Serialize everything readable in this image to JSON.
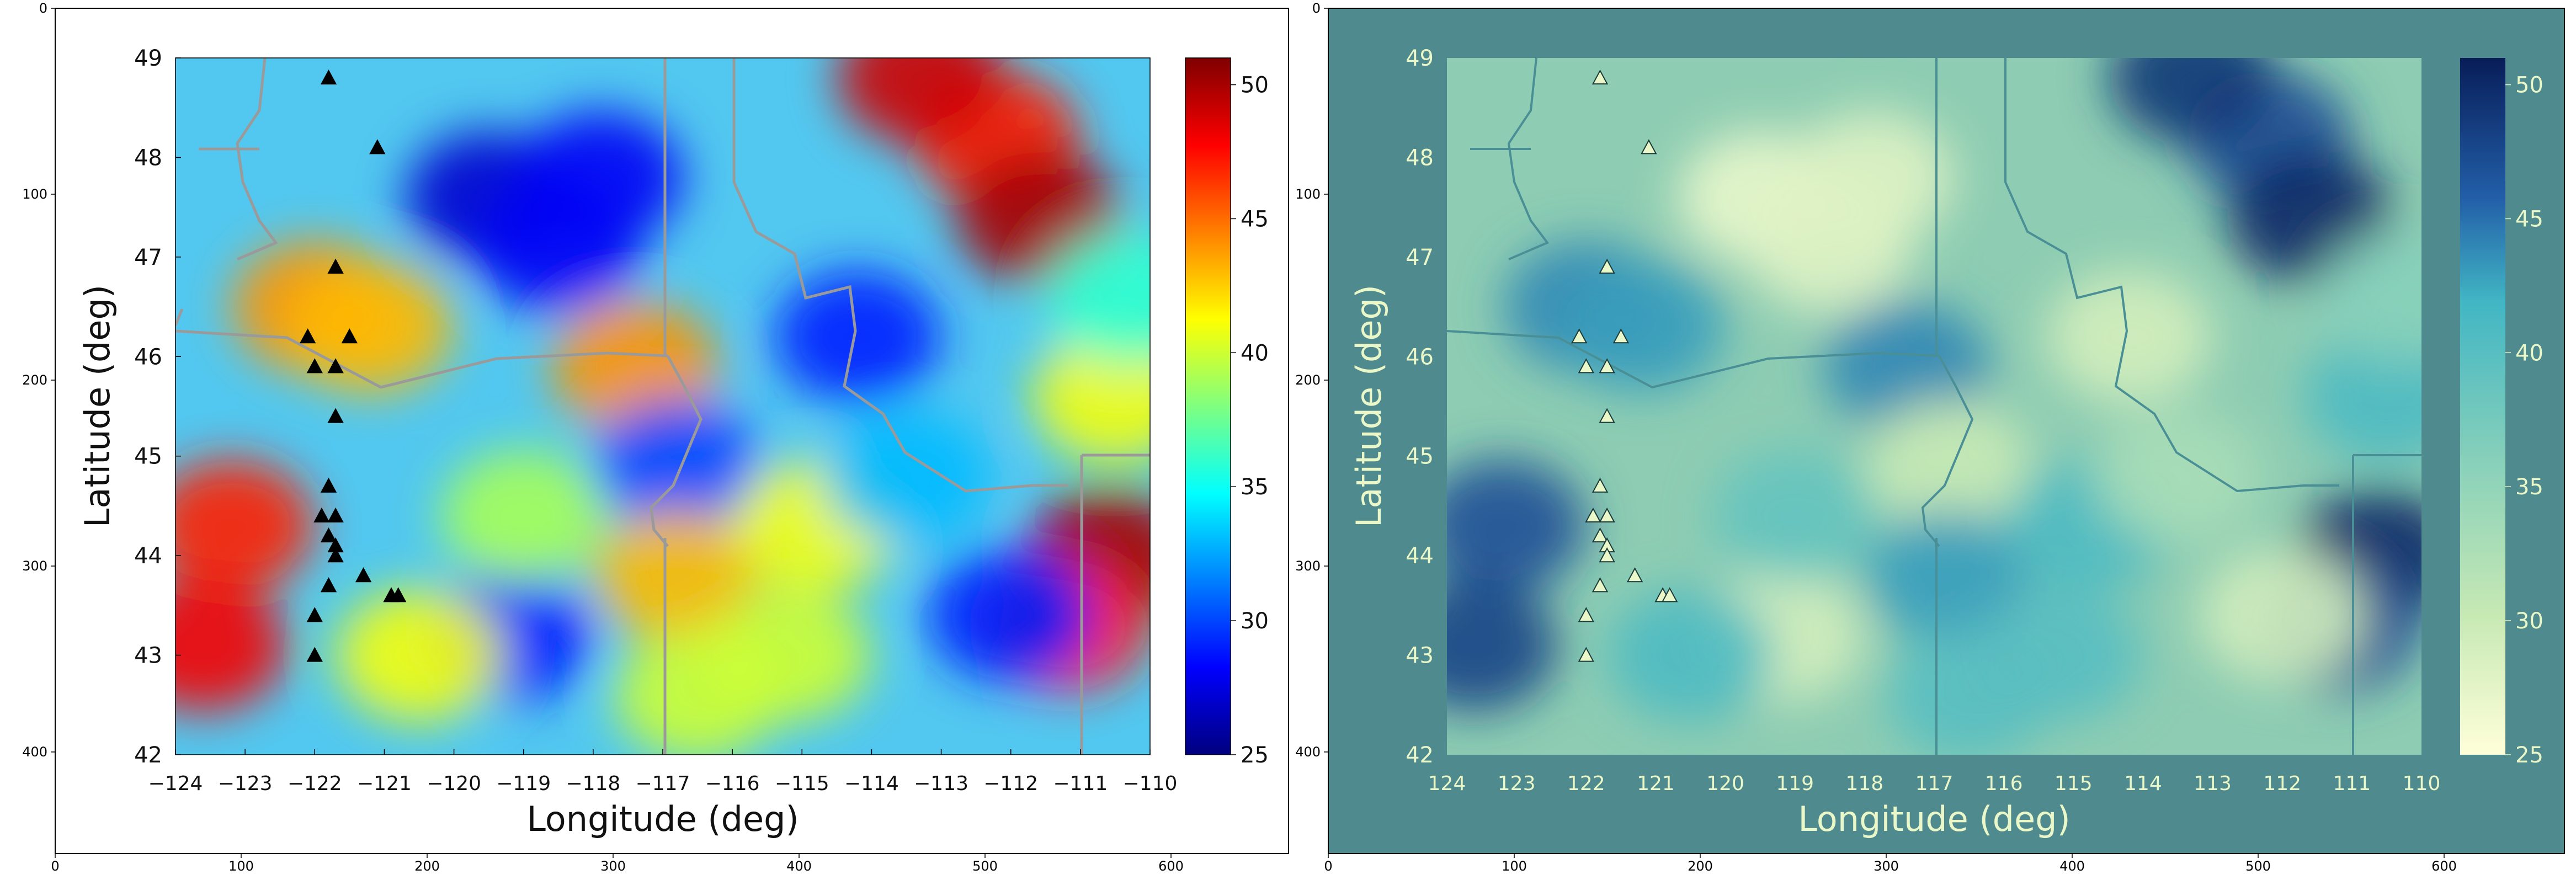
{
  "outer_axes": {
    "left": {
      "xticks": [
        "0",
        "100",
        "200",
        "300",
        "400",
        "500",
        "600"
      ],
      "yticks": [
        "0",
        "100",
        "200",
        "300",
        "400"
      ]
    },
    "right": {
      "xticks": [
        "0",
        "100",
        "200",
        "300",
        "400",
        "500",
        "600"
      ],
      "yticks": [
        "0",
        "100",
        "200",
        "300",
        "400"
      ]
    }
  },
  "chart_data": [
    {
      "type": "heatmap",
      "panel": "left",
      "colormap": "jet",
      "xlabel": "Longitude (deg)",
      "ylabel": "Latitude (deg)",
      "xlim": [
        -124,
        -110
      ],
      "ylim": [
        42,
        49
      ],
      "x_tick_labels": [
        "−124",
        "−123",
        "−122",
        "−121",
        "−120",
        "−119",
        "−118",
        "−117",
        "−116",
        "−115",
        "−114",
        "−113",
        "−112",
        "−111",
        "−110"
      ],
      "y_tick_labels": [
        "42",
        "43",
        "44",
        "45",
        "46",
        "47",
        "48",
        "49"
      ],
      "colorbar": {
        "range": [
          25,
          51
        ],
        "tick_labels": [
          "25",
          "30",
          "35",
          "40",
          "45",
          "50"
        ]
      },
      "grid": false,
      "markers": {
        "symbol": "triangle",
        "color": "#000000",
        "points": [
          [
            -121.8,
            48.8
          ],
          [
            -121.1,
            48.1
          ],
          [
            -121.7,
            46.9
          ],
          [
            -122.1,
            46.2
          ],
          [
            -121.5,
            46.2
          ],
          [
            -122.0,
            45.9
          ],
          [
            -121.7,
            45.9
          ],
          [
            -121.7,
            45.4
          ],
          [
            -121.8,
            44.7
          ],
          [
            -121.9,
            44.4
          ],
          [
            -121.7,
            44.4
          ],
          [
            -121.8,
            44.2
          ],
          [
            -121.7,
            44.1
          ],
          [
            -121.7,
            44.0
          ],
          [
            -121.3,
            43.8
          ],
          [
            -121.8,
            43.7
          ],
          [
            -120.9,
            43.6
          ],
          [
            -120.8,
            43.6
          ],
          [
            -122.0,
            43.4
          ],
          [
            -122.0,
            43.0
          ]
        ]
      },
      "regions": [
        {
          "lon": -112.2,
          "lat": 48.2,
          "v": 47
        },
        {
          "lon": -111.6,
          "lat": 47.4,
          "v": 50
        },
        {
          "lon": -113.3,
          "lat": 48.8,
          "v": 49
        },
        {
          "lon": -110.6,
          "lat": 44.0,
          "v": 50
        },
        {
          "lon": -111.2,
          "lat": 43.3,
          "v": 47
        },
        {
          "lon": -123.2,
          "lat": 44.3,
          "v": 47
        },
        {
          "lon": -123.6,
          "lat": 43.1,
          "v": 48
        },
        {
          "lon": -122.0,
          "lat": 46.5,
          "v": 44
        },
        {
          "lon": -121.2,
          "lat": 46.3,
          "v": 43
        },
        {
          "lon": -117.4,
          "lat": 45.9,
          "v": 44
        },
        {
          "lon": -119.5,
          "lat": 47.6,
          "v": 27
        },
        {
          "lon": -118.5,
          "lat": 47.1,
          "v": 28
        },
        {
          "lon": -117.9,
          "lat": 47.8,
          "v": 28
        },
        {
          "lon": -119.2,
          "lat": 43.2,
          "v": 29
        },
        {
          "lon": -116.8,
          "lat": 44.9,
          "v": 30
        },
        {
          "lon": -114.2,
          "lat": 46.2,
          "v": 29
        },
        {
          "lon": -112.0,
          "lat": 43.4,
          "v": 29
        },
        {
          "lon": -116.8,
          "lat": 43.8,
          "v": 43
        },
        {
          "lon": -114.8,
          "lat": 44.3,
          "v": 41
        },
        {
          "lon": -119.0,
          "lat": 44.4,
          "v": 39
        },
        {
          "lon": -116.5,
          "lat": 42.6,
          "v": 40
        },
        {
          "lon": -115.2,
          "lat": 43.0,
          "v": 40
        },
        {
          "lon": -110.5,
          "lat": 45.6,
          "v": 41
        },
        {
          "lon": -120.5,
          "lat": 43.0,
          "v": 41
        },
        {
          "lon": -113.5,
          "lat": 44.8,
          "v": 33
        },
        {
          "lon": -110.3,
          "lat": 46.6,
          "v": 36
        }
      ]
    },
    {
      "type": "heatmap",
      "panel": "right",
      "colormap": "YlGnBu-like",
      "xlabel": "Longitude (deg)",
      "ylabel": "Latitude (deg)",
      "xlim": [
        -124,
        -110
      ],
      "ylim": [
        42,
        49
      ],
      "x_tick_labels": [
        "124",
        "123",
        "122",
        "121",
        "120",
        "119",
        "118",
        "117",
        "116",
        "115",
        "114",
        "113",
        "112",
        "111",
        "110"
      ],
      "y_tick_labels": [
        "42",
        "43",
        "44",
        "45",
        "46",
        "47",
        "48",
        "49"
      ],
      "colorbar": {
        "range": [
          25,
          51
        ],
        "tick_labels": [
          "25",
          "30",
          "35",
          "40",
          "45",
          "50"
        ]
      },
      "grid": false
    }
  ],
  "colors": {
    "figure_bg": "#ffffff",
    "right_panel_bg": "#4f8a8f",
    "jet_base": "#52c8f0",
    "state_borders": "#9a9a9a",
    "markers": "#000000",
    "right_text": "#eaf7c8"
  }
}
